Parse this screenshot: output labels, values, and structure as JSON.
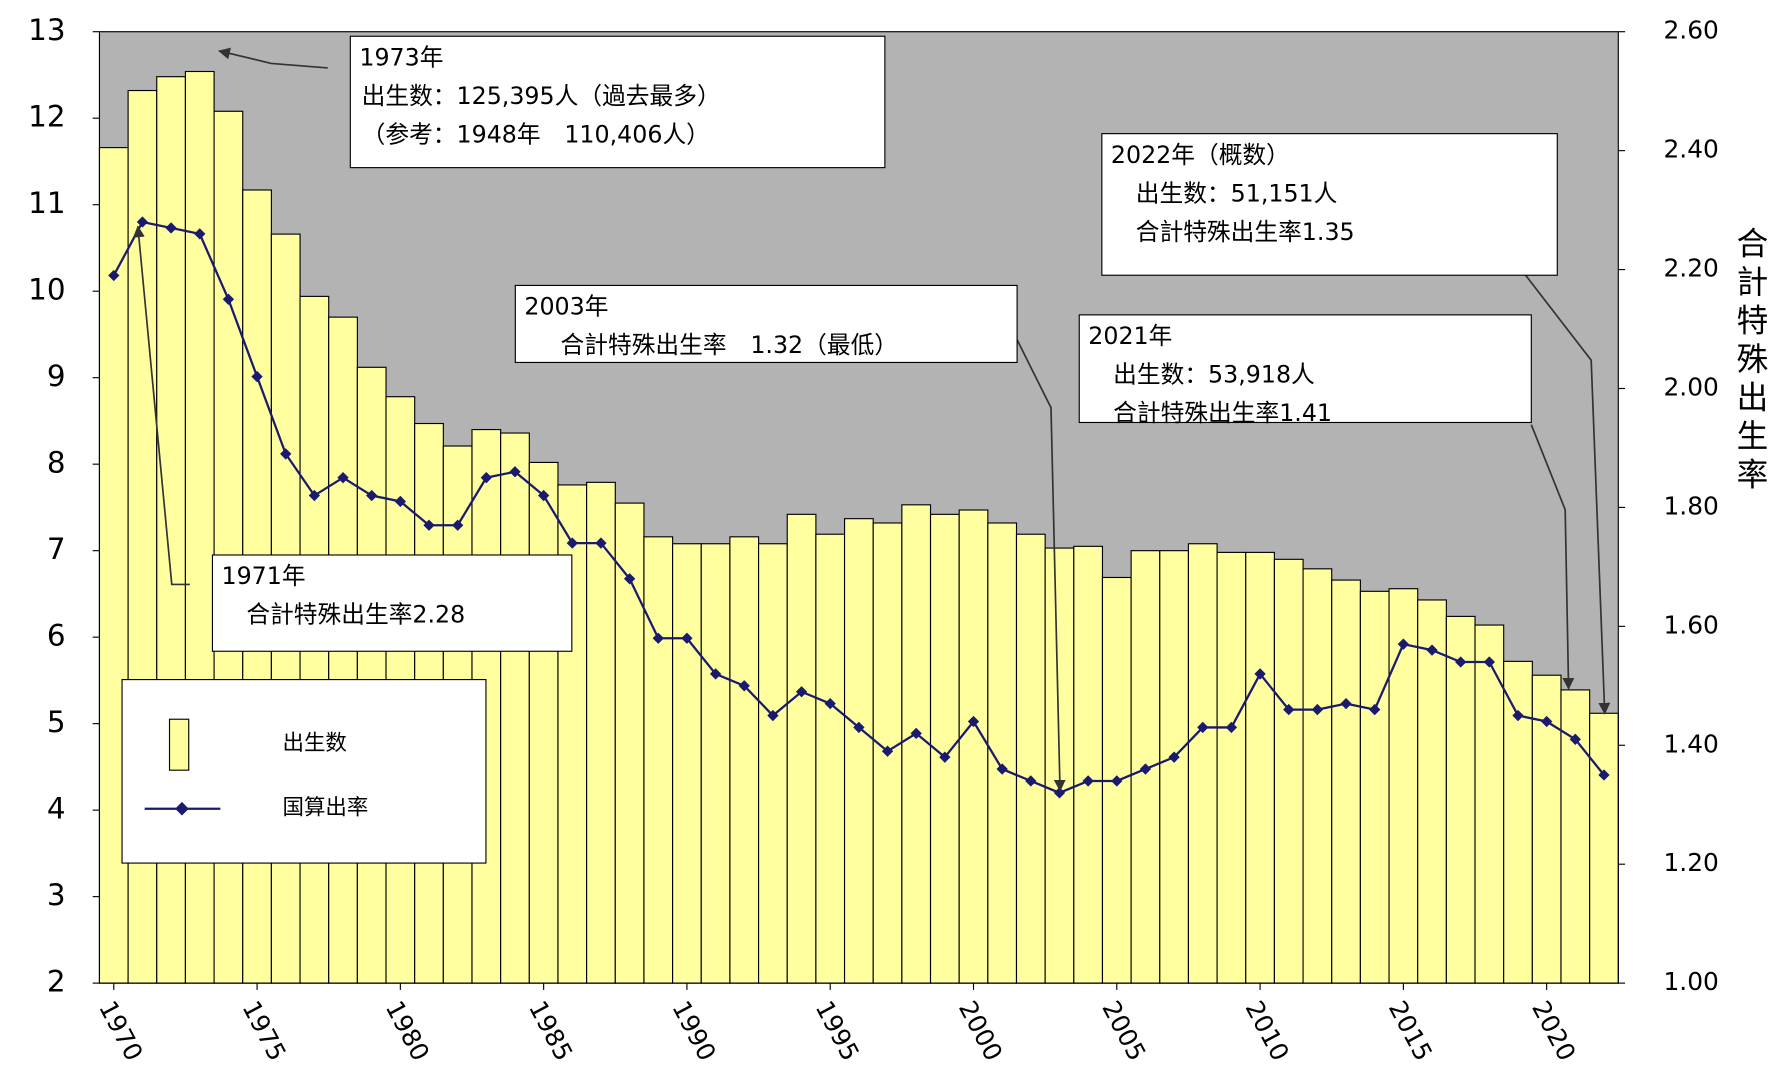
{
  "chart_data": {
    "type": "bar",
    "x": [
      1970,
      1971,
      1972,
      1973,
      1974,
      1975,
      1976,
      1977,
      1978,
      1979,
      1980,
      1981,
      1982,
      1983,
      1984,
      1985,
      1986,
      1987,
      1988,
      1989,
      1990,
      1991,
      1992,
      1993,
      1994,
      1995,
      1996,
      1997,
      1998,
      1999,
      2000,
      2001,
      2002,
      2003,
      2004,
      2005,
      2006,
      2007,
      2008,
      2009,
      2010,
      2011,
      2012,
      2013,
      2014,
      2015,
      2016,
      2017,
      2018,
      2019,
      2020,
      2021,
      2022
    ],
    "xlim": [
      1969.5,
      2022.5
    ],
    "xticks": [
      1970,
      1975,
      1980,
      1985,
      1990,
      1995,
      2000,
      2005,
      2010,
      2015,
      2020
    ],
    "ylim": [
      2,
      13
    ],
    "yticks": [
      2,
      3,
      4,
      5,
      6,
      7,
      8,
      9,
      10,
      11,
      12,
      13
    ],
    "y2lim": [
      1.0,
      2.6
    ],
    "y2ticks": [
      {
        "value": 1.0,
        "label": "1.00"
      },
      {
        "value": 1.2,
        "label": "1.20"
      },
      {
        "value": 1.4,
        "label": "1.40"
      },
      {
        "value": 1.6,
        "label": "1.60"
      },
      {
        "value": 1.8,
        "label": "1.80"
      },
      {
        "value": 2.0,
        "label": "2.00"
      },
      {
        "value": 2.2,
        "label": "2.20"
      },
      {
        "value": 2.4,
        "label": "2.40"
      },
      {
        "value": 2.6,
        "label": "2.60"
      }
    ],
    "y2label": "合計特殊出生率",
    "series": [
      {
        "name": "出生数",
        "type": "bar",
        "color": "#ffffa0",
        "values": [
          11.66,
          12.32,
          12.48,
          12.54,
          12.08,
          11.17,
          10.66,
          9.94,
          9.7,
          9.12,
          8.78,
          8.47,
          8.21,
          8.4,
          8.36,
          8.02,
          7.76,
          7.79,
          7.55,
          7.16,
          7.08,
          7.08,
          7.16,
          7.08,
          7.42,
          7.19,
          7.37,
          7.32,
          7.53,
          7.42,
          7.47,
          7.32,
          7.19,
          7.03,
          7.05,
          6.69,
          7.0,
          7.0,
          7.08,
          6.98,
          6.98,
          6.9,
          6.79,
          6.66,
          6.53,
          6.56,
          6.43,
          6.24,
          6.14,
          5.72,
          5.56,
          5.39,
          5.12
        ]
      },
      {
        "name": "国算出率",
        "type": "line",
        "axis": "y2",
        "color": "#1a1a6e",
        "values": [
          2.19,
          2.28,
          2.27,
          2.26,
          2.15,
          2.02,
          1.89,
          1.82,
          1.85,
          1.82,
          1.81,
          1.77,
          1.77,
          1.85,
          1.86,
          1.82,
          1.74,
          1.74,
          1.68,
          1.58,
          1.58,
          1.52,
          1.5,
          1.45,
          1.49,
          1.47,
          1.43,
          1.39,
          1.42,
          1.38,
          1.44,
          1.36,
          1.34,
          1.32,
          1.34,
          1.34,
          1.36,
          1.38,
          1.43,
          1.43,
          1.52,
          1.46,
          1.46,
          1.47,
          1.46,
          1.57,
          1.56,
          1.54,
          1.54,
          1.45,
          1.44,
          1.41,
          1.35
        ]
      }
    ],
    "background": "#b3b3b3",
    "annotations": [
      {
        "lines": [
          "1973年",
          "出生数：125,395人（過去最多）",
          "（参考：1948年　110,406人）"
        ]
      },
      {
        "lines": [
          "1971年",
          "合計特殊出生率2.28"
        ]
      },
      {
        "lines": [
          "2003年",
          "合計特殊出生率　1.32（最低）"
        ]
      },
      {
        "lines": [
          "2021年",
          "出生数：53,918人",
          "合計特殊出生率1.41"
        ]
      },
      {
        "lines": [
          "2022年（概数）",
          "出生数：51,151人",
          "合計特殊出生率1.35"
        ]
      }
    ]
  }
}
